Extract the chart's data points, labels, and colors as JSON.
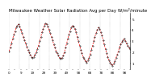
{
  "title": "Milwaukee Weather Solar Radiation Avg per Day W/m²/minute",
  "line_color": "#ff0000",
  "dot_color": "#000000",
  "bg_color": "#ffffff",
  "grid_color": "#999999",
  "ylim": [
    0.5,
    5.5
  ],
  "yticks": [
    1,
    2,
    3,
    4,
    5
  ],
  "y_values": [
    2.1,
    2.4,
    2.8,
    3.2,
    3.6,
    3.9,
    4.2,
    4.4,
    4.5,
    4.3,
    4.0,
    3.7,
    3.4,
    3.1,
    2.8,
    2.5,
    2.2,
    2.0,
    1.8,
    1.6,
    1.5,
    1.6,
    1.8,
    2.0,
    2.3,
    2.6,
    3.0,
    3.4,
    3.8,
    4.1,
    4.4,
    4.6,
    4.5,
    4.3,
    4.0,
    3.7,
    3.4,
    3.1,
    2.7,
    2.4,
    2.1,
    1.9,
    1.7,
    1.5,
    1.4,
    1.5,
    1.7,
    2.0,
    2.4,
    2.8,
    3.2,
    3.6,
    3.9,
    4.2,
    4.4,
    4.3,
    4.1,
    3.8,
    3.4,
    3.0,
    2.6,
    2.2,
    1.9,
    1.6,
    1.4,
    1.2,
    1.1,
    1.3,
    1.5,
    1.8,
    2.2,
    2.6,
    3.0,
    3.4,
    3.7,
    4.0,
    4.2,
    4.1,
    3.8,
    3.5,
    3.1,
    2.7,
    2.3,
    1.9,
    1.6,
    1.3,
    1.1,
    0.9,
    0.8,
    1.0,
    1.2,
    1.5,
    1.8,
    2.1,
    2.4,
    2.7,
    2.9,
    3.1,
    3.2,
    3.0,
    2.8,
    2.6,
    2.4,
    2.3
  ],
  "vgrid_count": 13,
  "title_fontsize": 4.0,
  "tick_fontsize": 3.0,
  "line_width": 0.5,
  "marker_size": 0.7
}
